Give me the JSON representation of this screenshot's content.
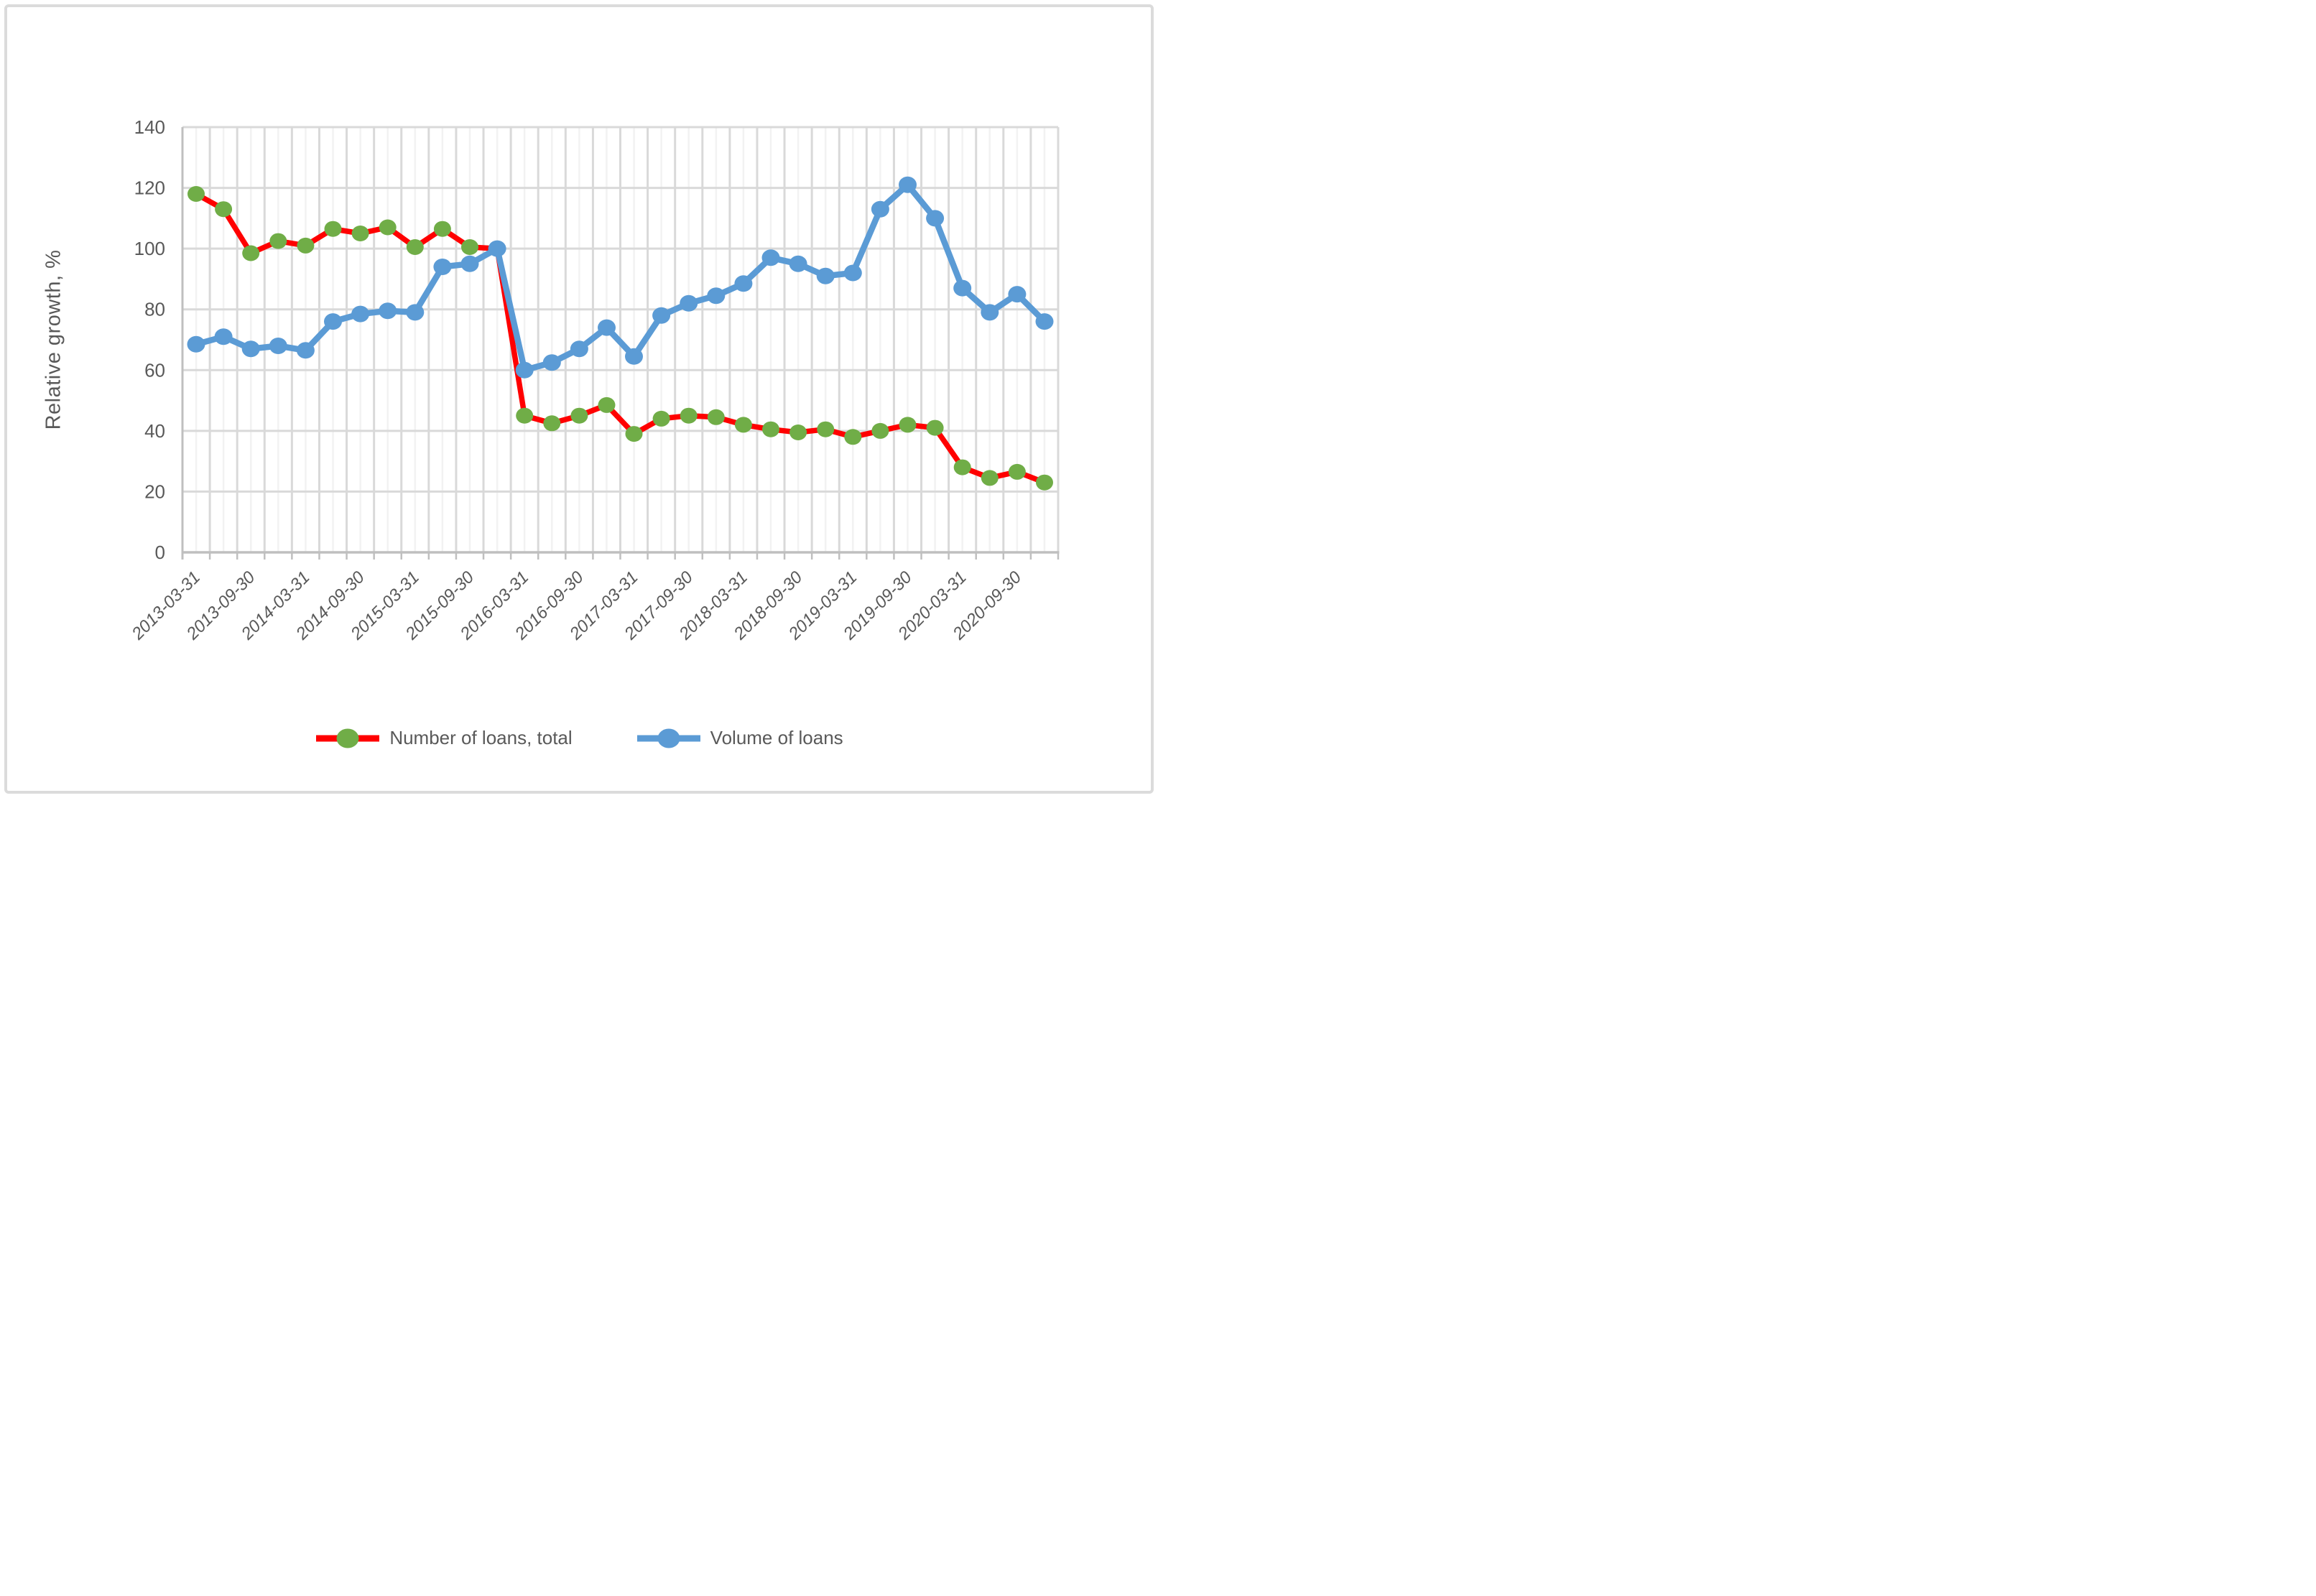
{
  "figure": {
    "background": "#FFFFFF",
    "border_color": "#DBDBDB"
  },
  "chart_data": {
    "type": "line",
    "title": "",
    "xlabel": "",
    "ylabel": "Relative growth, %",
    "ylim": [
      0,
      140
    ],
    "yticks": [
      0,
      20,
      40,
      60,
      80,
      100,
      120,
      140
    ],
    "x_label_every": 2,
    "grid": true,
    "legend_position": "bottom",
    "x": [
      "2013-03-31",
      "2013-06-30",
      "2013-09-30",
      "2013-12-31",
      "2014-03-31",
      "2014-06-30",
      "2014-09-30",
      "2014-12-31",
      "2015-03-31",
      "2015-06-30",
      "2015-09-30",
      "2015-12-31",
      "2016-03-31",
      "2016-06-30",
      "2016-09-30",
      "2016-12-31",
      "2017-03-31",
      "2017-06-30",
      "2017-09-30",
      "2017-12-31",
      "2018-03-31",
      "2018-06-30",
      "2018-09-30",
      "2018-12-31",
      "2019-03-31",
      "2019-06-30",
      "2019-09-30",
      "2019-12-31",
      "2020-03-31",
      "2020-06-30",
      "2020-09-30",
      "2020-12-31"
    ],
    "x_tick_labels_shown": [
      "2013-03-31",
      "2013-09-30",
      "2014-03-31",
      "2014-09-30",
      "2015-03-31",
      "2015-09-30",
      "2016-03-31",
      "2016-09-30",
      "2017-03-31",
      "2017-09-30",
      "2018-03-31",
      "2018-09-30",
      "2019-03-31",
      "2019-09-30",
      "2020-03-31",
      "2020-09-30"
    ],
    "series": [
      {
        "name": "Number of loans, total",
        "line_color": "#FF0000",
        "marker_color": "#70AD47",
        "values": [
          118,
          113,
          98.5,
          102.5,
          101,
          106.5,
          105,
          107,
          100.5,
          106.5,
          100.5,
          100,
          45,
          42.5,
          45,
          48.5,
          39,
          44,
          45,
          44.5,
          42,
          40.5,
          39.5,
          40.5,
          38,
          40,
          42,
          41,
          28,
          24.5,
          26.5,
          23
        ]
      },
      {
        "name": "Volume of loans",
        "line_color": "#5B9BD5",
        "marker_color": "#5B9BD5",
        "values": [
          68.5,
          71,
          67,
          68,
          66.5,
          76,
          78.5,
          79.5,
          79,
          94,
          95,
          100,
          60,
          62.5,
          67,
          74,
          64.5,
          78,
          82,
          84.5,
          88.5,
          97,
          95,
          91,
          92,
          113,
          121,
          110,
          87,
          79,
          85,
          76
        ]
      }
    ],
    "colors": {
      "number_line": "#FF0000",
      "number_marker": "#70AD47",
      "volume_line": "#5B9BD5",
      "volume_marker": "#5B9BD5",
      "gridline": "#D9D9D9",
      "gridline_minor": "#F2F2F2",
      "axis": "#BFBFBF",
      "text": "#595959",
      "figure_border": "#DBDBDB"
    }
  }
}
